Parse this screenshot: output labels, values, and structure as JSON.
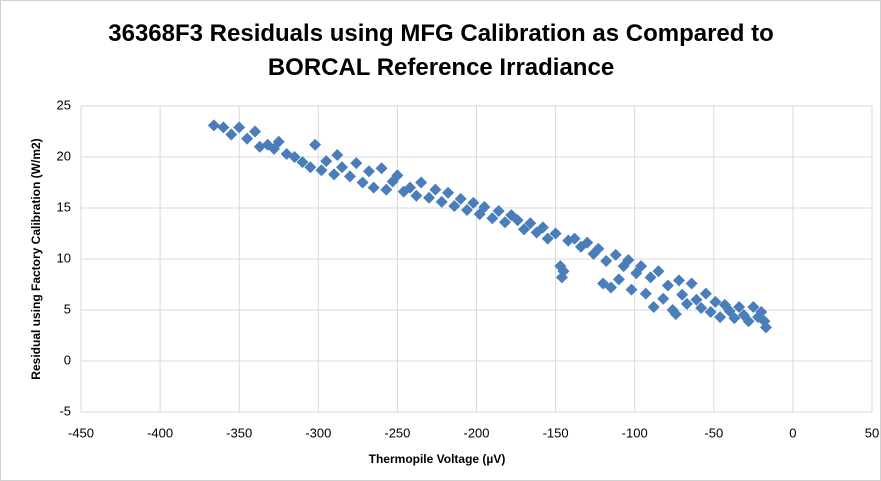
{
  "chart_data": {
    "type": "scatter",
    "title": "36368F3 Residuals using MFG Calibration as Compared to BORCAL Reference Irradiance",
    "x_label": "Thermopile Voltage (µV)",
    "y_label": "Residual using Factory Calibration (W/m2)",
    "xlim": [
      -450,
      50
    ],
    "xticks": [
      -450,
      -400,
      -350,
      -300,
      -250,
      -200,
      -150,
      -100,
      -50,
      0,
      50
    ],
    "ylim": [
      -5,
      25
    ],
    "yticks": [
      -5,
      0,
      5,
      10,
      15,
      20,
      25
    ],
    "grid": true,
    "marker": "diamond",
    "series": [
      {
        "color": "#4a7ebb",
        "x": [
          -366,
          -360,
          -355,
          -350,
          -345,
          -340,
          -337,
          -332,
          -328,
          -325,
          -320,
          -315,
          -310,
          -305,
          -302,
          -298,
          -295,
          -290,
          -288,
          -285,
          -280,
          -276,
          -272,
          -268,
          -265,
          -260,
          -257,
          -253,
          -250,
          -246,
          -242,
          -238,
          -235,
          -230,
          -226,
          -222,
          -218,
          -214,
          -210,
          -206,
          -202,
          -198,
          -195,
          -190,
          -186,
          -182,
          -178,
          -174,
          -170,
          -166,
          -162,
          -158,
          -155,
          -150,
          -147,
          -146,
          -145,
          -142,
          -138,
          -134,
          -130,
          -126,
          -123,
          -120,
          -118,
          -115,
          -112,
          -110,
          -107,
          -104,
          -102,
          -99,
          -96,
          -93,
          -90,
          -88,
          -85,
          -82,
          -79,
          -76,
          -74,
          -72,
          -70,
          -67,
          -64,
          -61,
          -58,
          -55,
          -52,
          -49,
          -46,
          -43,
          -40,
          -37,
          -34,
          -31,
          -28,
          -25,
          -22,
          -20,
          -18,
          -17
        ],
        "values": [
          23.1,
          22.9,
          22.2,
          22.9,
          21.8,
          22.5,
          21.0,
          21.2,
          20.8,
          21.5,
          20.3,
          20.0,
          19.5,
          19.0,
          21.2,
          18.7,
          19.6,
          18.3,
          20.2,
          19.0,
          18.1,
          19.4,
          17.5,
          18.6,
          17.0,
          18.9,
          16.8,
          17.6,
          18.2,
          16.6,
          17.0,
          16.2,
          17.5,
          16.0,
          16.8,
          15.6,
          16.5,
          15.2,
          15.9,
          14.8,
          15.5,
          14.4,
          15.1,
          14.0,
          14.7,
          13.6,
          14.3,
          13.8,
          12.9,
          13.5,
          12.6,
          13.1,
          12.0,
          12.5,
          9.3,
          8.2,
          8.8,
          11.8,
          12.0,
          11.2,
          11.6,
          10.5,
          11.0,
          7.6,
          9.8,
          7.2,
          10.4,
          8.0,
          9.3,
          9.9,
          7.0,
          8.6,
          9.3,
          6.6,
          8.2,
          5.3,
          8.8,
          6.1,
          7.4,
          5.0,
          4.6,
          7.9,
          6.5,
          5.6,
          7.6,
          6.0,
          5.2,
          6.6,
          4.8,
          5.8,
          4.3,
          5.5,
          4.9,
          4.2,
          5.3,
          4.5,
          3.9,
          5.3,
          4.3,
          4.8,
          3.9,
          3.3
        ]
      }
    ]
  }
}
